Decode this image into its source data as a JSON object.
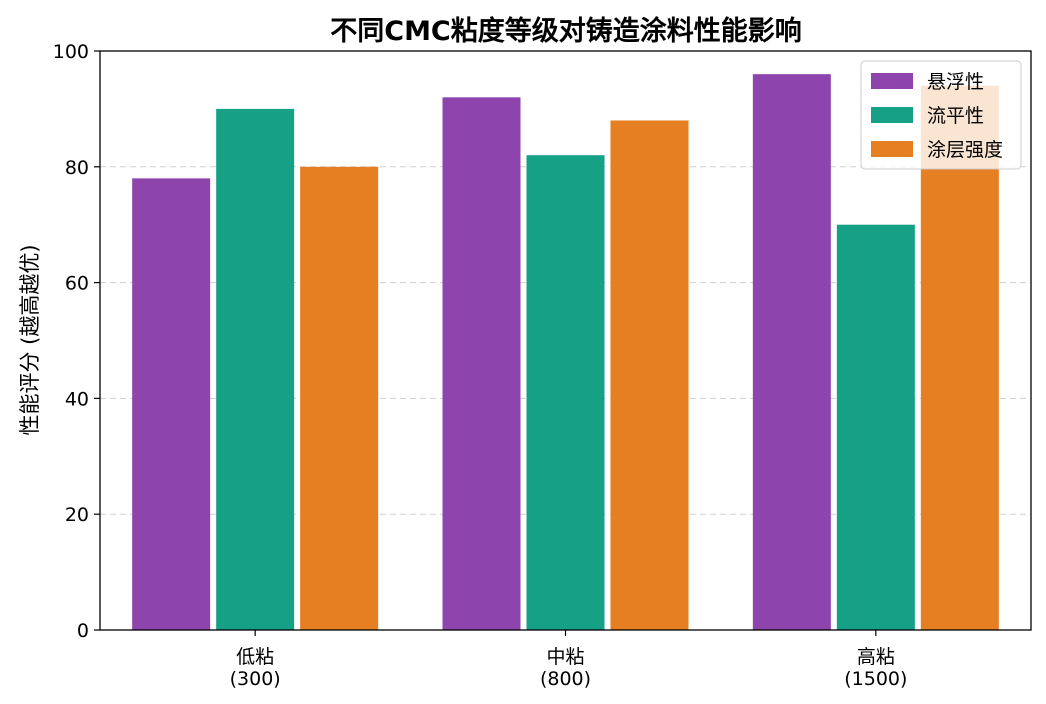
{
  "chart_data": {
    "type": "bar",
    "title": "不同CMC粘度等级对铸造涂料性能影响",
    "xlabel": "",
    "ylabel": "性能评分 (越高越优)",
    "categories": [
      {
        "line1": "低粘",
        "line2": "(300)"
      },
      {
        "line1": "中粘",
        "line2": "(800)"
      },
      {
        "line1": "高粘",
        "line2": "(1500)"
      }
    ],
    "series": [
      {
        "name": "悬浮性",
        "color": "#8e44ad",
        "values": [
          78,
          92,
          96
        ]
      },
      {
        "name": "流平性",
        "color": "#16a085",
        "values": [
          90,
          82,
          70
        ]
      },
      {
        "name": "涂层强度",
        "color": "#e67e22",
        "values": [
          80,
          88,
          94
        ]
      }
    ],
    "ylim": [
      0,
      100
    ],
    "yticks": [
      "0",
      "20",
      "40",
      "60",
      "80",
      "100"
    ],
    "grid": "horizontal-dashed",
    "legend_position": "top-right"
  }
}
